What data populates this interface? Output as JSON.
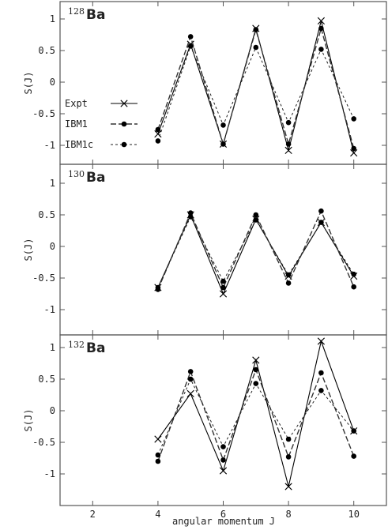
{
  "chart_data": {
    "type": "line",
    "xlabel": "angular momentum J",
    "ylabel": "S(J)",
    "xlim": [
      1,
      11
    ],
    "ylim": [
      -1.3,
      1.3
    ],
    "x_ticks": [
      2,
      4,
      6,
      8,
      10
    ],
    "y_ticks": [
      1,
      0.5,
      0,
      -0.5,
      -1
    ],
    "y_tick_labels": [
      "1",
      "0.5",
      "0",
      "-0.5",
      "-1"
    ],
    "legend": {
      "placement": "left",
      "entries": [
        "Expt",
        "IBM1",
        "IBM1c"
      ]
    },
    "panels": [
      {
        "mass": "128",
        "element": "Ba",
        "x": [
          4,
          5,
          6,
          7,
          8,
          9,
          10
        ],
        "series": [
          {
            "name": "Expt",
            "values": [
              -0.82,
              0.6,
              -0.98,
              0.85,
              -1.08,
              0.97,
              -1.12
            ]
          },
          {
            "name": "IBM1",
            "values": [
              -0.75,
              0.72,
              -0.98,
              0.83,
              -0.98,
              0.85,
              -1.05
            ]
          },
          {
            "name": "IBM1c",
            "values": [
              -0.93,
              0.57,
              -0.68,
              0.55,
              -0.64,
              0.52,
              -0.58
            ]
          }
        ]
      },
      {
        "mass": "130",
        "element": "Ba",
        "x": [
          4,
          5,
          6,
          7,
          8,
          9,
          10
        ],
        "series": [
          {
            "name": "Expt",
            "values": [
              -0.65,
              0.5,
              -0.75,
              0.43,
              -0.47,
              0.38,
              -0.47
            ]
          },
          {
            "name": "IBM1",
            "values": [
              -0.68,
              0.53,
              -0.65,
              0.5,
              -0.58,
              0.56,
              -0.64
            ]
          },
          {
            "name": "IBM1c",
            "values": [
              -0.65,
              0.47,
              -0.55,
              0.42,
              -0.45,
              0.38,
              -0.44
            ]
          }
        ]
      },
      {
        "mass": "132",
        "element": "Ba",
        "x": [
          4,
          5,
          6,
          7,
          8,
          9,
          10
        ],
        "series": [
          {
            "name": "Expt",
            "values": [
              -0.45,
              0.27,
              -0.95,
              0.8,
              -1.2,
              1.1,
              -0.32
            ]
          },
          {
            "name": "IBM1",
            "values": [
              -0.8,
              0.62,
              -0.78,
              0.65,
              -0.73,
              0.6,
              -0.72
            ]
          },
          {
            "name": "IBM1c",
            "values": [
              -0.7,
              0.5,
              -0.57,
              0.43,
              -0.45,
              0.32,
              -0.32
            ]
          }
        ]
      }
    ]
  }
}
